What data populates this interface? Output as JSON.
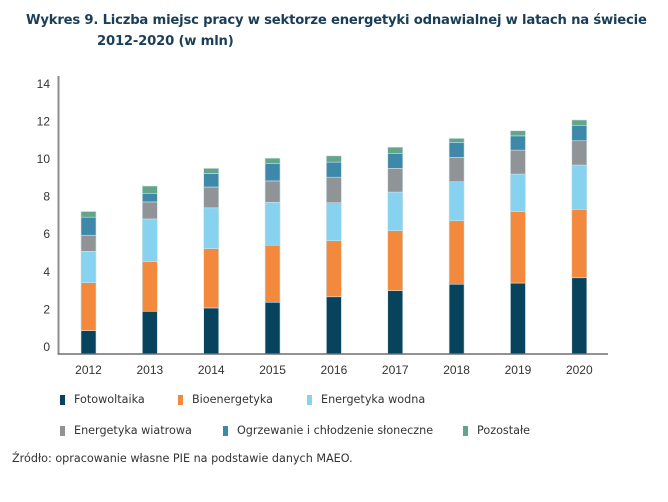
{
  "title": {
    "line1": "Wykres 9. Liczba miejsc pracy w sektorze energetyki odnawialnej w latach na świecie",
    "line2": "2012-2020 (w mln)"
  },
  "source": "Źródło: opracowanie własne PIE na podstawie danych MAEO.",
  "chart_data": {
    "type": "bar",
    "stacked": true,
    "title": "Wykres 9. Liczba miejsc pracy w sektorze energetyki odnawialnej w latach na świecie 2012-2020 (w mln)",
    "xlabel": "",
    "ylabel": "",
    "ylim": [
      0,
      14
    ],
    "yticks": [
      0,
      2,
      4,
      6,
      8,
      10,
      12,
      14
    ],
    "ytick_labels": [
      "0",
      "2",
      "4",
      "6",
      "8",
      "10",
      "12",
      "14"
    ],
    "grid": false,
    "legend_position": "bottom",
    "categories": [
      "2012",
      "2013",
      "2014",
      "2015",
      "2016",
      "2017",
      "2018",
      "2019",
      "2020"
    ],
    "series": [
      {
        "name": "Fotowoltaika",
        "color": "#07435c",
        "values": [
          1.19,
          2.18,
          2.35,
          2.64,
          2.92,
          3.23,
          3.56,
          3.62,
          3.89
        ]
      },
      {
        "name": "Bioenergetyka",
        "color": "#f3893d",
        "values": [
          2.45,
          2.53,
          3.03,
          2.91,
          2.86,
          3.06,
          3.24,
          3.64,
          3.49
        ]
      },
      {
        "name": "Energetyka wodna",
        "color": "#87d2ef",
        "values": [
          1.6,
          2.18,
          2.08,
          2.19,
          1.94,
          1.97,
          1.99,
          1.92,
          2.26
        ]
      },
      {
        "name": "Energetyka wiatrowa",
        "color": "#909497",
        "values": [
          0.82,
          0.87,
          1.06,
          1.09,
          1.3,
          1.21,
          1.24,
          1.22,
          1.24
        ]
      },
      {
        "name": "Ogrzewanie i chłodzenie słoneczne",
        "color": "#3e89a9",
        "values": [
          0.92,
          0.44,
          0.69,
          0.88,
          0.77,
          0.77,
          0.77,
          0.73,
          0.79
        ]
      },
      {
        "name": "Pozostałe",
        "color": "#62a58a",
        "values": [
          0.29,
          0.37,
          0.26,
          0.28,
          0.32,
          0.31,
          0.2,
          0.26,
          0.27
        ]
      }
    ]
  }
}
